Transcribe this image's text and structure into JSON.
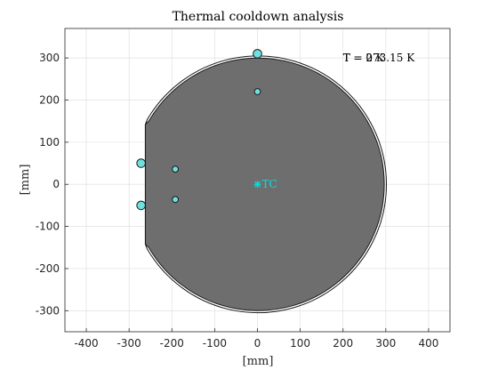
{
  "chart_data": {
    "type": "scatter",
    "title": "Thermal cooldown analysis",
    "xlabel": "[mm]",
    "ylabel": "[mm]",
    "xlim": [
      -450,
      450
    ],
    "ylim": [
      -350,
      370
    ],
    "xticks": [
      -400,
      -300,
      -200,
      -100,
      0,
      100,
      200,
      300,
      400
    ],
    "yticks": [
      -300,
      -200,
      -100,
      0,
      100,
      200,
      300
    ],
    "grid": true,
    "annotation_texts": [
      "T = 0 K",
      "T = 273.15 K"
    ],
    "annotation_position": [
      200,
      300
    ],
    "plate": {
      "radius_outer": 300,
      "radius_inner": 295,
      "flat_x": -262,
      "chamfer": [
        -252,
        150
      ],
      "fill": "#6e6e6e"
    },
    "tc_label": "TC",
    "tc_point": [
      0,
      0
    ],
    "marker_color": "#6fe0e0",
    "points_large": [
      {
        "x": 0,
        "y": 310
      },
      {
        "x": -272,
        "y": 50
      },
      {
        "x": -272,
        "y": -50
      }
    ],
    "points_small": [
      {
        "x": 0,
        "y": 220
      },
      {
        "x": -192,
        "y": 36
      },
      {
        "x": -192,
        "y": -36
      }
    ]
  }
}
